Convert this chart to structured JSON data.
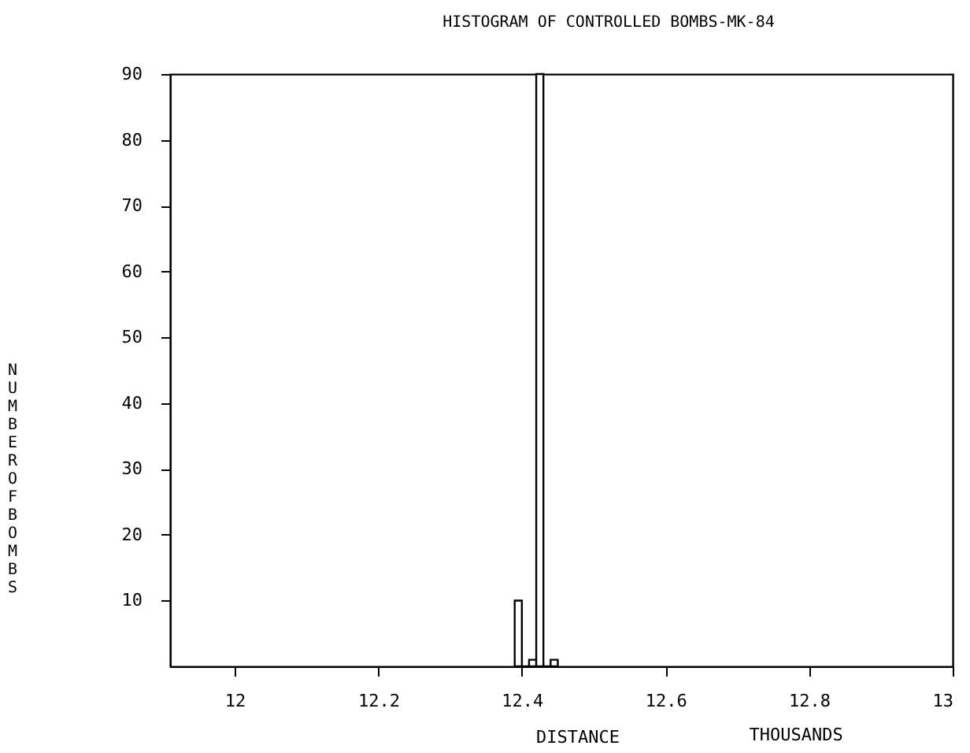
{
  "chart_data": {
    "type": "histogram",
    "title": "HISTOGRAM OF CONTROLLED BOMBS-MK-84",
    "xlabel": "DISTANCE",
    "ylabel": "NUMBER OF BOMBS",
    "annotations": [
      "THOUSANDS"
    ],
    "bins": [
      12.39,
      12.4,
      12.41,
      12.42,
      12.43,
      12.44,
      12.45
    ],
    "values": [
      10,
      0,
      1,
      90,
      0,
      1
    ],
    "color": "#000000",
    "xlim": [
      11.91,
      13
    ],
    "xticks": [
      12,
      12.2,
      12.4,
      12.6,
      12.8,
      13
    ],
    "ylim": [
      0,
      90
    ],
    "yticks": [
      10,
      20,
      30,
      40,
      50,
      60,
      70,
      80,
      90
    ],
    "grid": false
  }
}
